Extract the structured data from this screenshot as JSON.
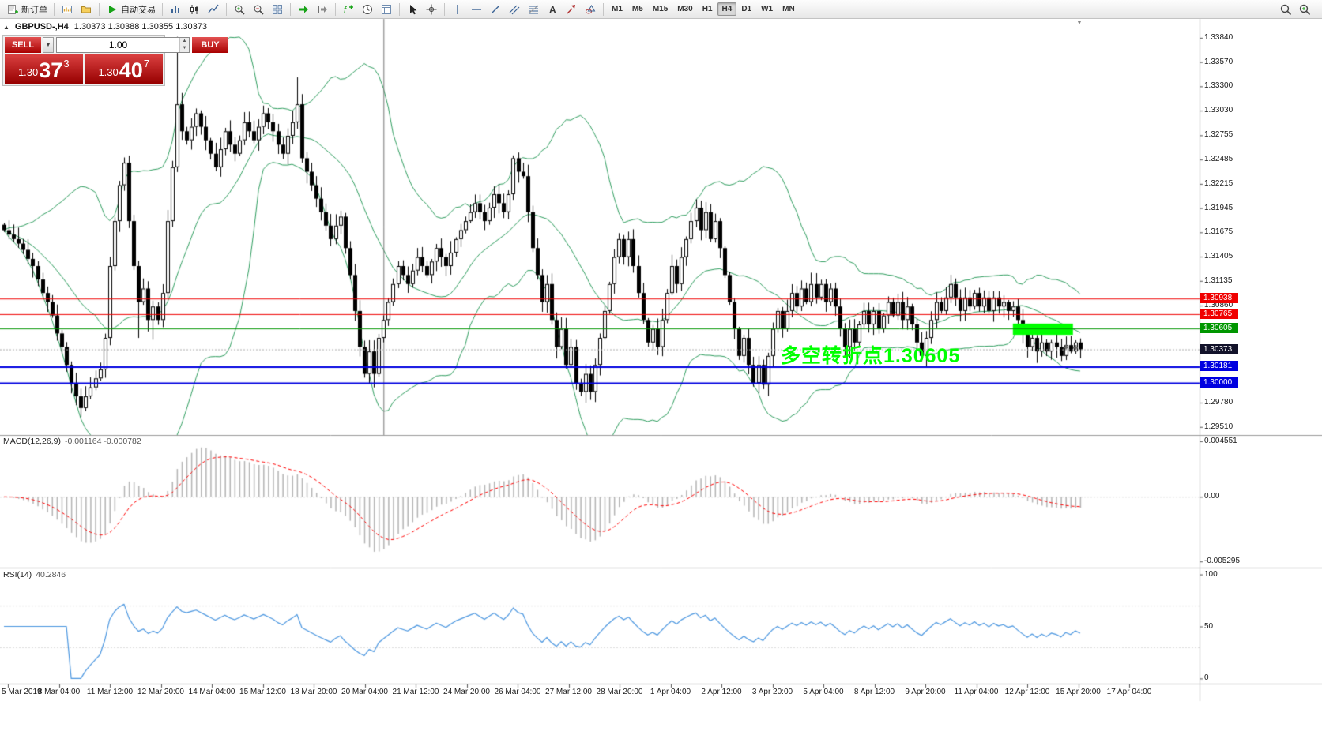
{
  "toolbar": {
    "groups": [
      {
        "items": [
          {
            "name": "new-order-button",
            "icon": "doc-plus",
            "label": "新订单"
          }
        ]
      },
      {
        "items": [
          {
            "name": "new-chart-button",
            "icon": "chart-window"
          },
          {
            "name": "profiles-button",
            "icon": "folder"
          }
        ]
      },
      {
        "items": [
          {
            "name": "autotrading-button",
            "icon": "play-green",
            "label": "自动交易"
          }
        ]
      },
      {
        "items": [
          {
            "name": "bar-chart-button",
            "icon": "bars"
          },
          {
            "name": "candlestick-chart-button",
            "icon": "candles"
          },
          {
            "name": "line-chart-button",
            "icon": "line-chart"
          }
        ]
      },
      {
        "items": [
          {
            "name": "zoom-in-button",
            "icon": "zoom-in"
          },
          {
            "name": "zoom-out-button",
            "icon": "zoom-out"
          },
          {
            "name": "tile-windows-button",
            "icon": "grid"
          }
        ]
      },
      {
        "items": [
          {
            "name": "auto-scroll-button",
            "icon": "arrow-green"
          },
          {
            "name": "chart-shift-button",
            "icon": "shift"
          }
        ]
      },
      {
        "items": [
          {
            "name": "indicators-button",
            "icon": "f-plus"
          },
          {
            "name": "periods-button",
            "icon": "clock"
          },
          {
            "name": "templates-button",
            "icon": "template"
          }
        ]
      },
      {
        "items": [
          {
            "name": "cursor-button",
            "icon": "cursor"
          },
          {
            "name": "crosshair-button",
            "icon": "crosshair"
          }
        ]
      },
      {
        "items": [
          {
            "name": "vertical-line-tool",
            "icon": "vline"
          },
          {
            "name": "horizontal-line-tool",
            "icon": "hline"
          },
          {
            "name": "trendline-tool",
            "icon": "trend"
          },
          {
            "name": "channel-tool",
            "icon": "channel"
          },
          {
            "name": "fibonacci-tool",
            "icon": "fib"
          },
          {
            "name": "text-tool",
            "icon": "text"
          },
          {
            "name": "arrows-tool",
            "icon": "arrow-tool"
          },
          {
            "name": "shapes-tool",
            "icon": "shapes"
          }
        ]
      },
      {
        "items": [
          {
            "name": "tf-m1-button",
            "tf": "M1"
          },
          {
            "name": "tf-m5-button",
            "tf": "M5"
          },
          {
            "name": "tf-m15-button",
            "tf": "M15"
          },
          {
            "name": "tf-m30-button",
            "tf": "M30"
          },
          {
            "name": "tf-h1-button",
            "tf": "H1"
          },
          {
            "name": "tf-h4-button",
            "tf": "H4",
            "active": true
          },
          {
            "name": "tf-d1-button",
            "tf": "D1"
          },
          {
            "name": "tf-w1-button",
            "tf": "W1"
          },
          {
            "name": "tf-mn-button",
            "tf": "MN"
          }
        ]
      },
      {
        "right": true,
        "items": [
          {
            "name": "search-button",
            "icon": "magnifier"
          },
          {
            "name": "add-symbol-button",
            "icon": "magnifier-plus"
          }
        ]
      }
    ]
  },
  "chart": {
    "symbol_period": "GBPUSD-,H4",
    "ohlc": "1.30373 1.30388 1.30355 1.30373",
    "shift_marker_icon": "▼"
  },
  "one_click": {
    "collapse_icon": "▲",
    "sell_label": "SELL",
    "buy_label": "BUY",
    "volume": "1.00",
    "dropdown_icon": "▼",
    "spin_up_icon": "▲",
    "spin_down_icon": "▼",
    "sell_price": {
      "small": "1.30",
      "big": "37",
      "sup": "3"
    },
    "buy_price": {
      "small": "1.30",
      "big": "40",
      "sup": "7"
    }
  },
  "chart_data": {
    "type": "candlestick",
    "symbol": "GBPUSD-",
    "period": "H4",
    "y_range": [
      1.2942,
      1.3405
    ],
    "closes": [
      1.317,
      1.3165,
      1.316,
      1.3155,
      1.3148,
      1.3138,
      1.313,
      1.3115,
      1.31,
      1.309,
      1.3075,
      1.3055,
      1.304,
      1.302,
      1.3,
      1.2985,
      1.2972,
      1.2985,
      1.2995,
      1.3005,
      1.3015,
      1.305,
      1.313,
      1.318,
      1.322,
      1.3245,
      1.318,
      1.313,
      1.309,
      1.3105,
      1.307,
      1.3085,
      1.307,
      1.31,
      1.318,
      1.324,
      1.331,
      1.328,
      1.327,
      1.3285,
      1.33,
      1.3285,
      1.327,
      1.3255,
      1.324,
      1.326,
      1.328,
      1.3265,
      1.3255,
      1.327,
      1.329,
      1.328,
      1.327,
      1.3285,
      1.33,
      1.329,
      1.328,
      1.3265,
      1.3255,
      1.3275,
      1.329,
      1.331,
      1.325,
      1.3235,
      1.322,
      1.3205,
      1.319,
      1.3175,
      1.316,
      1.3175,
      1.3185,
      1.315,
      1.312,
      1.308,
      1.304,
      1.301,
      1.3035,
      1.301,
      1.305,
      1.307,
      1.309,
      1.311,
      1.313,
      1.312,
      1.311,
      1.3125,
      1.314,
      1.313,
      1.312,
      1.3135,
      1.315,
      1.314,
      1.313,
      1.3145,
      1.316,
      1.317,
      1.318,
      1.319,
      1.32,
      1.319,
      1.318,
      1.3195,
      1.321,
      1.32,
      1.319,
      1.321,
      1.325,
      1.3235,
      1.323,
      1.319,
      1.315,
      1.312,
      1.309,
      1.311,
      1.307,
      1.304,
      1.306,
      1.302,
      1.304,
      1.3,
      1.299,
      1.301,
      1.299,
      1.302,
      1.305,
      1.308,
      1.311,
      1.314,
      1.316,
      1.314,
      1.316,
      1.313,
      1.31,
      1.307,
      1.3045,
      1.306,
      1.304,
      1.307,
      1.31,
      1.313,
      1.311,
      1.314,
      1.316,
      1.318,
      1.3195,
      1.317,
      1.319,
      1.316,
      1.318,
      1.315,
      1.312,
      1.309,
      1.306,
      1.303,
      1.305,
      1.302,
      1.3,
      1.302,
      1.2998,
      1.303,
      1.306,
      1.308,
      1.306,
      1.308,
      1.31,
      1.3085,
      1.3105,
      1.309,
      1.311,
      1.3095,
      1.311,
      1.309,
      1.3105,
      1.3085,
      1.306,
      1.304,
      1.306,
      1.3045,
      1.3065,
      1.308,
      1.3065,
      1.308,
      1.306,
      1.3075,
      1.309,
      1.3075,
      1.309,
      1.307,
      1.3085,
      1.3065,
      1.3045,
      1.303,
      1.305,
      1.307,
      1.309,
      1.308,
      1.3095,
      1.311,
      1.3095,
      1.308,
      1.3095,
      1.3085,
      1.31,
      1.3085,
      1.3095,
      1.308,
      1.3095,
      1.3085,
      1.309,
      1.308,
      1.3085,
      1.307,
      1.3055,
      1.304,
      1.305,
      1.3035,
      1.3045,
      1.3035,
      1.3045,
      1.304,
      1.303,
      1.3042,
      1.3035,
      1.3045,
      1.30373
    ],
    "extreme_overrides": {
      "16": {
        "low": 1.2962
      },
      "28": {
        "low": 1.305
      },
      "31": {
        "low": 1.3048
      },
      "36": {
        "high": 1.3385
      },
      "61": {
        "high": 1.334
      },
      "77": {
        "low": 1.2995
      },
      "121": {
        "low": 1.2978
      },
      "158": {
        "low": 1.2993
      }
    },
    "price_axis_labels": [
      "1.33840",
      "1.33570",
      "1.33300",
      "1.33030",
      "1.32755",
      "1.32485",
      "1.32215",
      "1.31945",
      "1.31675",
      "1.31405",
      "1.31135",
      "1.30860",
      "1.29780",
      "1.29510"
    ],
    "time_labels": [
      "5 Mar 2019",
      "8 Mar 04:00",
      "11 Mar 12:00",
      "12 Mar 20:00",
      "14 Mar 04:00",
      "15 Mar 12:00",
      "18 Mar 20:00",
      "20 Mar 04:00",
      "21 Mar 12:00",
      "24 Mar 20:00",
      "26 Mar 04:00",
      "27 Mar 12:00",
      "28 Mar 20:00",
      "1 Apr 04:00",
      "2 Apr 12:00",
      "3 Apr 20:00",
      "5 Apr 04:00",
      "8 Apr 12:00",
      "9 Apr 20:00",
      "11 Apr 04:00",
      "12 Apr 12:00",
      "15 Apr 20:00",
      "17 Apr 04:00"
    ],
    "bollinger": {
      "period": 20,
      "deviation": 2,
      "color": "#2f9e5f"
    },
    "horizontal_lines": [
      {
        "price": 1.30938,
        "label": "1.30938",
        "color": "#f00000",
        "width": 1
      },
      {
        "price": 1.30765,
        "label": "1.30765",
        "color": "#f00000",
        "width": 1
      },
      {
        "price": 1.30605,
        "label": "1.30605",
        "color": "#009600",
        "width": 1
      },
      {
        "price": 1.30181,
        "label": "1.30181",
        "color": "#0000e0",
        "width": 2
      },
      {
        "price": 1.3,
        "label": "1.30000",
        "color": "#0000e0",
        "width": 2
      }
    ],
    "bid_line": {
      "price": 1.30373,
      "label": "1.30373",
      "tag_color": "#12122a",
      "line_color": "#aaaaaa"
    },
    "rectangle": {
      "from_index": 210,
      "to_index": 222.5,
      "top": 1.3066,
      "bottom": 1.30535,
      "color": "#00ff00"
    },
    "vertical_line": {
      "index": 79,
      "color": "#777777"
    },
    "cursor_marks": [
      {
        "index": 221,
        "price": 1.304
      },
      {
        "index": 223,
        "price": 1.30395
      }
    ],
    "annotation": {
      "text": "多空转折点1.30605",
      "color": "#00ff00"
    },
    "macd": {
      "label": "MACD(12,26,9)",
      "values": "-0.001164 -0.000782",
      "axis": [
        "0.004551",
        "0.00",
        "-0.005295"
      ],
      "axis_values": [
        0.004551,
        0,
        -0.005295
      ],
      "range": [
        -0.0058,
        0.005
      ],
      "hist_color": "#b4b4b4",
      "signal_color": "#ff0000"
    },
    "rsi": {
      "label": "RSI(14)",
      "value": "40.2846",
      "axis": [
        "100",
        "50",
        "0"
      ],
      "axis_values": [
        100,
        50,
        0
      ],
      "range": [
        -5,
        105
      ],
      "color": "#4a96e0",
      "levels": [
        70,
        30
      ]
    }
  }
}
